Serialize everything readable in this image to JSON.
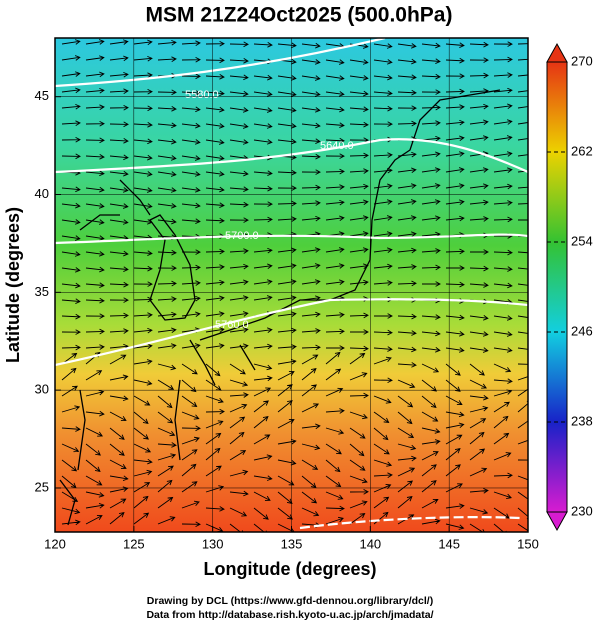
{
  "title": "MSM 21Z24Oct2025 (500.0hPa)",
  "x_label": "Longitude (degrees)",
  "y_label": "Latitude  (degrees)",
  "xlim": [
    120,
    150
  ],
  "xticks": [
    120,
    125,
    130,
    135,
    140,
    145,
    150
  ],
  "ylim": [
    22.75,
    48
  ],
  "yticks": [
    25,
    30,
    35,
    40,
    45
  ],
  "contour_labels": [
    "5580.0",
    "5640.0",
    "5700.0",
    "5760.0"
  ],
  "colorbar": {
    "lim": [
      230,
      270
    ],
    "ticks": [
      230,
      238,
      246,
      254,
      262,
      270
    ],
    "colors": [
      "#d81cd0",
      "#1822c8",
      "#12cfe0",
      "#34c232",
      "#ecd200",
      "#e63414"
    ]
  },
  "credits": [
    "Drawing by DCL (https://www.gfd-dennou.org/library/dcl/)",
    "Data from http://database.rish.kyoto-u.ac.jp/arch/jmadata/"
  ]
}
